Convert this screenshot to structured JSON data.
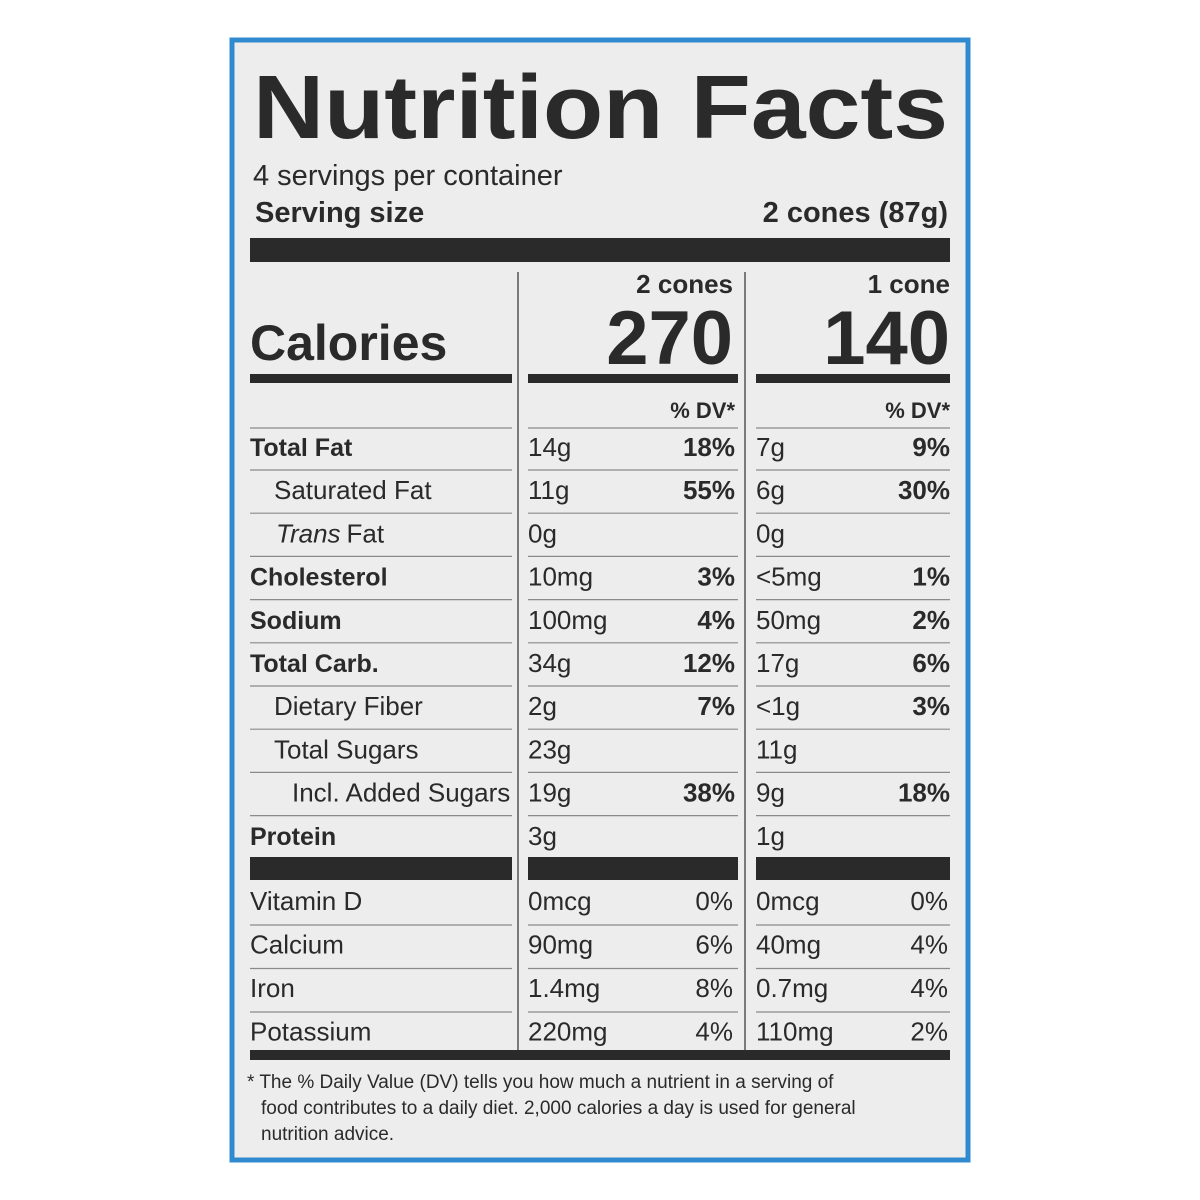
{
  "title": "Nutrition Facts",
  "servings_per_container": "4 servings per container",
  "serving_size": {
    "label": "Serving size",
    "value": "2 cones (87g)"
  },
  "calories": {
    "label": "Calories",
    "columns": [
      {
        "header": "2 cones",
        "value": "270"
      },
      {
        "header": "1 cone",
        "value": "140"
      }
    ]
  },
  "dv_header": [
    "% DV*",
    "% DV*"
  ],
  "nutrients": [
    {
      "name": "Total Fat",
      "amounts": [
        [
          "14g",
          "18%"
        ],
        [
          "7g",
          "9%"
        ]
      ]
    },
    {
      "name": "Saturated Fat",
      "amounts": [
        [
          "11g",
          "55%"
        ],
        [
          "6g",
          "30%"
        ]
      ]
    },
    {
      "name_italic": "Trans",
      "name": "Fat",
      "amounts": [
        [
          "0g"
        ],
        [
          "0g"
        ]
      ]
    },
    {
      "name": "Cholesterol",
      "amounts": [
        [
          "10mg",
          "3%"
        ],
        [
          "<5mg",
          "1%"
        ]
      ]
    },
    {
      "name": "Sodium",
      "amounts": [
        [
          "100mg",
          "4%"
        ],
        [
          "50mg",
          "2%"
        ]
      ]
    },
    {
      "name": "Total Carb.",
      "amounts": [
        [
          "34g",
          "12%"
        ],
        [
          "17g",
          "6%"
        ]
      ]
    },
    {
      "name": "Dietary Fiber",
      "amounts": [
        [
          "2g",
          "7%"
        ],
        [
          "<1g",
          "3%"
        ]
      ]
    },
    {
      "name": "Total Sugars",
      "amounts": [
        [
          "23g"
        ],
        [
          "11g"
        ]
      ]
    },
    {
      "name": "Incl. Added Sugars",
      "amounts": [
        [
          "19g",
          "38%"
        ],
        [
          "9g",
          "18%"
        ]
      ]
    },
    {
      "name": "Protein",
      "amounts": [
        [
          "3g"
        ],
        [
          "1g"
        ]
      ]
    }
  ],
  "vitamins": [
    {
      "name": "Vitamin D",
      "amounts": [
        [
          "0mcg",
          "0%"
        ],
        [
          "0mcg",
          "0%"
        ]
      ]
    },
    {
      "name": "Calcium",
      "amounts": [
        [
          "90mg",
          "6%"
        ],
        [
          "40mg",
          "4%"
        ]
      ]
    },
    {
      "name": "Iron",
      "amounts": [
        [
          "1.4mg",
          "8%"
        ],
        [
          "0.7mg",
          "4%"
        ]
      ]
    },
    {
      "name": "Potassium",
      "amounts": [
        [
          "220mg",
          "4%"
        ],
        [
          "110mg",
          "2%"
        ]
      ]
    }
  ],
  "footnote": [
    "* The % Daily Value (DV) tells you how much a nutrient in a serving of",
    "food contributes to a daily diet. 2,000 calories a day is used for general",
    "nutrition advice."
  ]
}
